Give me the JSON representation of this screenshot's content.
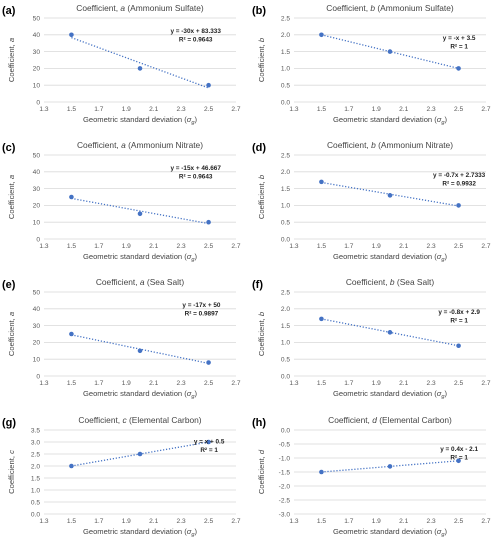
{
  "chart_data": [
    {
      "type": "scatter",
      "label": "(a)",
      "title_pre": "Coefficient, ",
      "title_var": "a",
      "title_post": " (Ammonium Sulfate)",
      "xlabel_pre": "Geometric standard deviation (",
      "xlabel_var": "σ",
      "xlabel_sub": "g",
      "xlabel_post": ")",
      "ylabel_pre": "Coefficient, ",
      "ylabel_var": "a",
      "xlim": [
        1.3,
        2.7
      ],
      "xticks": [
        "1.3",
        "1.5",
        "1.7",
        "1.9",
        "2.1",
        "2.3",
        "2.5",
        "2.7"
      ],
      "ylim": [
        0,
        50
      ],
      "yticks": [
        "0",
        "10",
        "20",
        "30",
        "40",
        "50"
      ],
      "x": [
        1.5,
        2.0,
        2.5
      ],
      "y": [
        40,
        20,
        10
      ],
      "trendline": {
        "slope": -30,
        "intercept": 83.333
      },
      "equation": "y = -30x + 83.333",
      "r2": "R² = 0.9643"
    },
    {
      "type": "scatter",
      "label": "(b)",
      "title_pre": "Coefficient, ",
      "title_var": "b",
      "title_post": " (Ammonium Sulfate)",
      "xlabel_pre": "Geometric standard deviation (",
      "xlabel_var": "σ",
      "xlabel_sub": "g",
      "xlabel_post": ")",
      "ylabel_pre": "Coefficient, ",
      "ylabel_var": "b",
      "xlim": [
        1.3,
        2.7
      ],
      "xticks": [
        "1.3",
        "1.5",
        "1.7",
        "1.9",
        "2.1",
        "2.3",
        "2.5",
        "2.7"
      ],
      "ylim": [
        0,
        2.5
      ],
      "yticks": [
        "0.0",
        "0.5",
        "1.0",
        "1.5",
        "2.0",
        "2.5"
      ],
      "x": [
        1.5,
        2.0,
        2.5
      ],
      "y": [
        2.0,
        1.5,
        1.0
      ],
      "trendline": {
        "slope": -1,
        "intercept": 3.5
      },
      "equation": "y = -x + 3.5",
      "r2": "R² = 1"
    },
    {
      "type": "scatter",
      "label": "(c)",
      "title_pre": "Coefficient, ",
      "title_var": "a",
      "title_post": " (Ammonium Nitrate)",
      "xlabel_pre": "Geometric standard deviation (",
      "xlabel_var": "σ",
      "xlabel_sub": "g",
      "xlabel_post": ")",
      "ylabel_pre": "Coefficient, ",
      "ylabel_var": "a",
      "xlim": [
        1.3,
        2.7
      ],
      "xticks": [
        "1.3",
        "1.5",
        "1.7",
        "1.9",
        "2.1",
        "2.3",
        "2.5",
        "2.7"
      ],
      "ylim": [
        0,
        50
      ],
      "yticks": [
        "0",
        "10",
        "20",
        "30",
        "40",
        "50"
      ],
      "x": [
        1.5,
        2.0,
        2.5
      ],
      "y": [
        25,
        15,
        10
      ],
      "trendline": {
        "slope": -15,
        "intercept": 46.667
      },
      "equation": "y = -15x + 46.667",
      "r2": "R² = 0.9643"
    },
    {
      "type": "scatter",
      "label": "(d)",
      "title_pre": "Coefficient, ",
      "title_var": "b",
      "title_post": " (Ammonium Nitrate)",
      "xlabel_pre": "Geometric standard deviation (",
      "xlabel_var": "σ",
      "xlabel_sub": "g",
      "xlabel_post": ")",
      "ylabel_pre": "Coefficient, ",
      "ylabel_var": "b",
      "xlim": [
        1.3,
        2.7
      ],
      "xticks": [
        "1.3",
        "1.5",
        "1.7",
        "1.9",
        "2.1",
        "2.3",
        "2.5",
        "2.7"
      ],
      "ylim": [
        0,
        2.5
      ],
      "yticks": [
        "0.0",
        "0.5",
        "1.0",
        "1.5",
        "2.0",
        "2.5"
      ],
      "x": [
        1.5,
        2.0,
        2.5
      ],
      "y": [
        1.7,
        1.3,
        1.0
      ],
      "trendline": {
        "slope": -0.7,
        "intercept": 2.7333
      },
      "equation": "y = -0.7x + 2.7333",
      "r2": "R² = 0.9932"
    },
    {
      "type": "scatter",
      "label": "(e)",
      "title_pre": "Coefficient, ",
      "title_var": "a",
      "title_post": " (Sea Salt)",
      "xlabel_pre": "Geometric standard deviation (",
      "xlabel_var": "σ",
      "xlabel_sub": "g",
      "xlabel_post": ")",
      "ylabel_pre": "Coefficient, ",
      "ylabel_var": "a",
      "xlim": [
        1.3,
        2.7
      ],
      "xticks": [
        "1.3",
        "1.5",
        "1.7",
        "1.9",
        "2.1",
        "2.3",
        "2.5",
        "2.7"
      ],
      "ylim": [
        0,
        50
      ],
      "yticks": [
        "0",
        "10",
        "20",
        "30",
        "40",
        "50"
      ],
      "x": [
        1.5,
        2.0,
        2.5
      ],
      "y": [
        25,
        15,
        8
      ],
      "trendline": {
        "slope": -17,
        "intercept": 50
      },
      "equation": "y = -17x + 50",
      "r2": "R² = 0.9897"
    },
    {
      "type": "scatter",
      "label": "(f)",
      "title_pre": "Coefficient, ",
      "title_var": "b",
      "title_post": " (Sea Salt)",
      "xlabel_pre": "Geometric standard deviation (",
      "xlabel_var": "σ",
      "xlabel_sub": "g",
      "xlabel_post": ")",
      "ylabel_pre": "Coefficient, ",
      "ylabel_var": "b",
      "xlim": [
        1.3,
        2.7
      ],
      "xticks": [
        "1.3",
        "1.5",
        "1.7",
        "1.9",
        "2.1",
        "2.3",
        "2.5",
        "2.7"
      ],
      "ylim": [
        0,
        2.5
      ],
      "yticks": [
        "0.0",
        "0.5",
        "1.0",
        "1.5",
        "2.0",
        "2.5"
      ],
      "x": [
        1.5,
        2.0,
        2.5
      ],
      "y": [
        1.7,
        1.3,
        0.9
      ],
      "trendline": {
        "slope": -0.8,
        "intercept": 2.9
      },
      "equation": "y = -0.8x + 2.9",
      "r2": "R² = 1"
    },
    {
      "type": "scatter",
      "label": "(g)",
      "title_pre": "Coefficient, ",
      "title_var": "c",
      "title_post": " (Elemental Carbon)",
      "xlabel_pre": "Geometric standard deviation (",
      "xlabel_var": "σ",
      "xlabel_sub": "g",
      "xlabel_post": ")",
      "ylabel_pre": "Coefficient, ",
      "ylabel_var": "c",
      "xlim": [
        1.3,
        2.7
      ],
      "xticks": [
        "1.3",
        "1.5",
        "1.7",
        "1.9",
        "2.1",
        "2.3",
        "2.5",
        "2.7"
      ],
      "ylim": [
        0,
        3.5
      ],
      "yticks": [
        "0.0",
        "0.5",
        "1.0",
        "1.5",
        "2.0",
        "2.5",
        "3.0",
        "3.5"
      ],
      "x": [
        1.5,
        2.0,
        2.5
      ],
      "y": [
        2.0,
        2.5,
        3.0
      ],
      "trendline": {
        "slope": 1,
        "intercept": 0.5
      },
      "equation": "y = x + 0.5",
      "r2": "R² = 1"
    },
    {
      "type": "scatter",
      "label": "(h)",
      "title_pre": "Coefficient, ",
      "title_var": "d",
      "title_post": " (Elemental Carbon)",
      "xlabel_pre": "Geometric standard deviation (",
      "xlabel_var": "σ",
      "xlabel_sub": "g",
      "xlabel_post": ")",
      "ylabel_pre": "Coefficient, ",
      "ylabel_var": "d",
      "xlim": [
        1.3,
        2.7
      ],
      "xticks": [
        "1.3",
        "1.5",
        "1.7",
        "1.9",
        "2.1",
        "2.3",
        "2.5",
        "2.7"
      ],
      "ylim": [
        -3.0,
        0
      ],
      "yticks": [
        "-3.0",
        "-2.5",
        "-2.0",
        "-1.5",
        "-1.0",
        "-0.5",
        "0.0"
      ],
      "x": [
        1.5,
        2.0,
        2.5
      ],
      "y": [
        -1.5,
        -1.3,
        -1.1
      ],
      "trendline": {
        "slope": 0.4,
        "intercept": -2.1
      },
      "equation": "y = 0.4x - 2.1",
      "r2": "R² = 1"
    }
  ]
}
